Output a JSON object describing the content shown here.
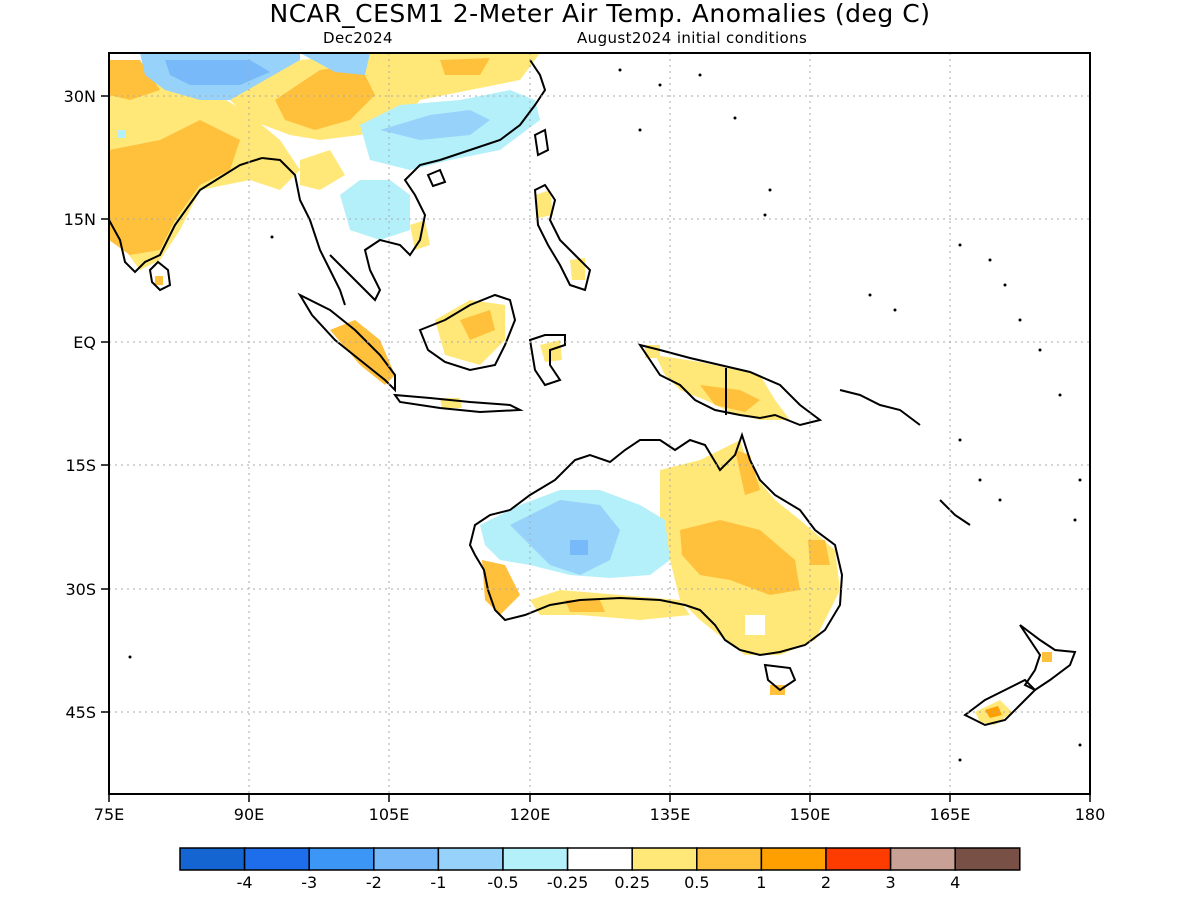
{
  "title": "NCAR_CESM1 2-Meter Air Temp. Anomalies (deg C)",
  "subtitle_left": "Dec2024",
  "subtitle_right": "August2024 initial conditions",
  "map": {
    "region": "Indian Ocean / Maritime Continent / Australia",
    "lon_range": [
      75,
      180
    ],
    "lat_range": [
      -55,
      30
    ],
    "lon_ticks": [
      "75E",
      "90E",
      "105E",
      "120E",
      "135E",
      "150E",
      "165E",
      "180"
    ],
    "lat_ticks": [
      "30N",
      "15N",
      "EQ",
      "15S",
      "30S",
      "45S"
    ],
    "grid": "dotted"
  },
  "legend": {
    "colors": [
      "#1464d2",
      "#1e6eeb",
      "#3c96f5",
      "#78b9fa",
      "#96d2fa",
      "#b4f0fa",
      "#ffffff",
      "#ffe878",
      "#ffc03c",
      "#ffa000",
      "#ff3c00",
      "#c8a096",
      "#785046"
    ],
    "labels": [
      "-4",
      "-3",
      "-2",
      "-1",
      "-0.5",
      "-0.25",
      "0.25",
      "0.5",
      "1",
      "2",
      "3",
      "4"
    ]
  }
}
